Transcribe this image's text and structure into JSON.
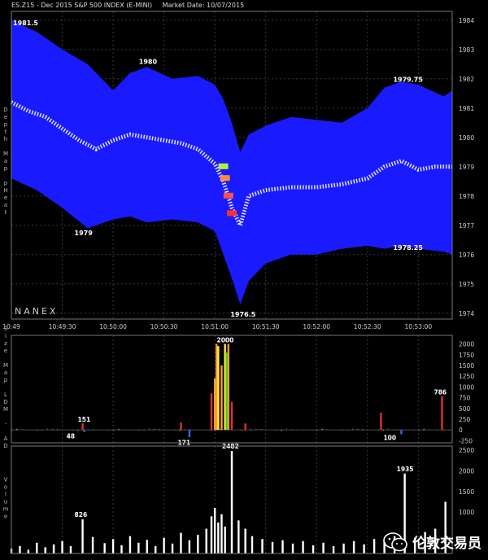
{
  "header": {
    "symbol": "ES.Z15 - Dec 2015 S&P 500 INDEX (E-MINI)",
    "market_date": "Market Date: 10/07/2015"
  },
  "watermark": {
    "text": "伦敦交易员"
  },
  "colors": {
    "background": "#000000",
    "heat_band": "#1a1aff",
    "price_line": "#e8e8ff",
    "grid": "#3a3a3a",
    "volume": "#ffffff",
    "ldm_up": "#e03030",
    "ldm_orange": "#ff9933",
    "ldm_yellow": "#ffee33",
    "ldm_green": "#33cc33",
    "ldm_blue": "#3366ff"
  },
  "chart_data": [
    {
      "type": "area",
      "panel": "Depth Map pHeat",
      "ylabel": "Depth Map pHeat",
      "ylim": [
        1973.8,
        1984.3
      ],
      "yticks": [
        1974,
        1975,
        1976,
        1977,
        1978,
        1979,
        1980,
        1981,
        1982,
        1983,
        1984
      ],
      "xlim": [
        "10:49:00",
        "10:53:20"
      ],
      "xticks": [
        "10:49",
        "10:49:30",
        "10:50:00",
        "10:50:30",
        "10:51:00",
        "10:51:30",
        "10:52:00",
        "10:52:30",
        "10:53:00"
      ],
      "brand": "NANEX",
      "annotations": [
        "1981.5",
        "1980",
        "1979.75",
        "1979",
        "1978.25",
        "1976.5"
      ],
      "series": [
        {
          "kind": "band-upper",
          "x": [
            "10:49:00",
            "10:49:15",
            "10:49:30",
            "10:49:45",
            "10:50:00",
            "10:50:10",
            "10:50:20",
            "10:50:35",
            "10:50:50",
            "10:51:00",
            "10:51:05",
            "10:51:10",
            "10:51:15",
            "10:51:20",
            "10:51:30",
            "10:51:45",
            "10:52:00",
            "10:52:15",
            "10:52:30",
            "10:52:40",
            "10:52:50",
            "10:53:00",
            "10:53:15",
            "10:53:20"
          ],
          "values": [
            1984.0,
            1983.6,
            1983.0,
            1982.5,
            1981.6,
            1982.2,
            1982.4,
            1982.0,
            1982.1,
            1981.8,
            1981.3,
            1980.5,
            1979.5,
            1980.1,
            1980.4,
            1980.7,
            1980.6,
            1980.5,
            1981.0,
            1981.7,
            1981.9,
            1981.8,
            1981.4,
            1981.6
          ]
        },
        {
          "kind": "band-lower",
          "x": [
            "10:49:00",
            "10:49:15",
            "10:49:30",
            "10:49:45",
            "10:50:00",
            "10:50:10",
            "10:50:20",
            "10:50:35",
            "10:50:50",
            "10:51:00",
            "10:51:05",
            "10:51:10",
            "10:51:15",
            "10:51:20",
            "10:51:30",
            "10:51:45",
            "10:52:00",
            "10:52:15",
            "10:52:30",
            "10:52:40",
            "10:52:50",
            "10:53:00",
            "10:53:15",
            "10:53:20"
          ],
          "values": [
            1978.6,
            1978.2,
            1977.6,
            1976.9,
            1977.2,
            1977.3,
            1977.1,
            1977.2,
            1977.1,
            1976.8,
            1976.0,
            1975.2,
            1974.3,
            1975.1,
            1975.7,
            1976.0,
            1976.0,
            1976.2,
            1976.3,
            1976.2,
            1976.3,
            1976.2,
            1976.1,
            1976.0
          ]
        },
        {
          "kind": "price",
          "x": [
            "10:49:00",
            "10:49:10",
            "10:49:20",
            "10:49:30",
            "10:49:40",
            "10:49:50",
            "10:50:00",
            "10:50:10",
            "10:50:20",
            "10:50:30",
            "10:50:40",
            "10:50:50",
            "10:51:00",
            "10:51:05",
            "10:51:10",
            "10:51:15",
            "10:51:20",
            "10:51:30",
            "10:51:45",
            "10:52:00",
            "10:52:15",
            "10:52:30",
            "10:52:40",
            "10:52:50",
            "10:53:00",
            "10:53:10",
            "10:53:20"
          ],
          "values": [
            1981.2,
            1980.9,
            1980.7,
            1980.3,
            1979.9,
            1979.6,
            1979.9,
            1980.1,
            1980.0,
            1979.9,
            1979.8,
            1979.6,
            1979.1,
            1978.5,
            1977.6,
            1977.0,
            1978.0,
            1978.2,
            1978.3,
            1978.3,
            1978.4,
            1978.6,
            1979.0,
            1979.2,
            1978.9,
            1979.0,
            1979.0
          ]
        }
      ],
      "heat_marks": [
        {
          "x": "10:51:05",
          "y": 1979.0,
          "color": "#b4f03c"
        },
        {
          "x": "10:51:06",
          "y": 1978.6,
          "color": "#ff8a3c"
        },
        {
          "x": "10:51:08",
          "y": 1978.0,
          "color": "#ff5050"
        },
        {
          "x": "10:51:10",
          "y": 1977.4,
          "color": "#ff3030"
        }
      ]
    },
    {
      "type": "bar",
      "panel": "Size Map LDM - AD",
      "ylabel": "Size Map LDM - AD",
      "ylim": [
        -300,
        2200
      ],
      "yticks": [
        -250,
        0,
        250,
        500,
        750,
        1000,
        1250,
        1500,
        1750,
        2000
      ],
      "annotations": [
        "151",
        "48",
        "171",
        "2000",
        "100",
        "786"
      ],
      "bars": [
        {
          "x": "10:49:42",
          "v": 151,
          "color": "#e03030"
        },
        {
          "x": "10:49:43",
          "v": -48,
          "color": "#3366ff"
        },
        {
          "x": "10:50:40",
          "v": 171,
          "color": "#e03030"
        },
        {
          "x": "10:50:45",
          "v": -171,
          "color": "#3366ff"
        },
        {
          "x": "10:50:58",
          "v": 850,
          "color": "#e03030"
        },
        {
          "x": "10:51:00",
          "v": 1200,
          "color": "#ff9933"
        },
        {
          "x": "10:51:01",
          "v": 2000,
          "color": "#ff9933"
        },
        {
          "x": "10:51:02",
          "v": 1950,
          "color": "#ffee33"
        },
        {
          "x": "10:51:04",
          "v": 1500,
          "color": "#ff9933"
        },
        {
          "x": "10:51:06",
          "v": 2000,
          "color": "#ffee33"
        },
        {
          "x": "10:51:07",
          "v": 1800,
          "color": "#33cc33"
        },
        {
          "x": "10:51:08",
          "v": 2000,
          "color": "#ff9933"
        },
        {
          "x": "10:51:10",
          "v": 650,
          "color": "#e03030"
        },
        {
          "x": "10:51:18",
          "v": 150,
          "color": "#e03030"
        },
        {
          "x": "10:52:38",
          "v": 400,
          "color": "#e03030"
        },
        {
          "x": "10:52:50",
          "v": -100,
          "color": "#3366ff"
        },
        {
          "x": "10:53:14",
          "v": 786,
          "color": "#e03030"
        }
      ]
    },
    {
      "type": "bar",
      "panel": "Volume",
      "ylabel": "Volume",
      "ylim": [
        0,
        2600
      ],
      "yticks": [
        1000,
        1500,
        2000,
        2500
      ],
      "annotations": [
        "826",
        "2482",
        "1935"
      ],
      "bars": [
        {
          "x": "10:49:00",
          "v": 120
        },
        {
          "x": "10:49:05",
          "v": 180
        },
        {
          "x": "10:49:10",
          "v": 90
        },
        {
          "x": "10:49:15",
          "v": 260
        },
        {
          "x": "10:49:20",
          "v": 150
        },
        {
          "x": "10:49:25",
          "v": 220
        },
        {
          "x": "10:49:30",
          "v": 300
        },
        {
          "x": "10:49:35",
          "v": 180
        },
        {
          "x": "10:49:42",
          "v": 826
        },
        {
          "x": "10:49:48",
          "v": 400
        },
        {
          "x": "10:49:55",
          "v": 250
        },
        {
          "x": "10:50:00",
          "v": 350
        },
        {
          "x": "10:50:05",
          "v": 200
        },
        {
          "x": "10:50:10",
          "v": 420
        },
        {
          "x": "10:50:15",
          "v": 260
        },
        {
          "x": "10:50:20",
          "v": 330
        },
        {
          "x": "10:50:25",
          "v": 180
        },
        {
          "x": "10:50:30",
          "v": 380
        },
        {
          "x": "10:50:35",
          "v": 240
        },
        {
          "x": "10:50:40",
          "v": 500
        },
        {
          "x": "10:50:45",
          "v": 320
        },
        {
          "x": "10:50:50",
          "v": 450
        },
        {
          "x": "10:50:55",
          "v": 600
        },
        {
          "x": "10:50:58",
          "v": 900
        },
        {
          "x": "10:51:00",
          "v": 1100
        },
        {
          "x": "10:51:02",
          "v": 750
        },
        {
          "x": "10:51:04",
          "v": 950
        },
        {
          "x": "10:51:06",
          "v": 650
        },
        {
          "x": "10:51:10",
          "v": 2482
        },
        {
          "x": "10:51:14",
          "v": 800
        },
        {
          "x": "10:51:18",
          "v": 600
        },
        {
          "x": "10:51:22",
          "v": 420
        },
        {
          "x": "10:51:28",
          "v": 350
        },
        {
          "x": "10:51:34",
          "v": 280
        },
        {
          "x": "10:51:40",
          "v": 320
        },
        {
          "x": "10:51:46",
          "v": 240
        },
        {
          "x": "10:51:52",
          "v": 300
        },
        {
          "x": "10:51:58",
          "v": 200
        },
        {
          "x": "10:52:04",
          "v": 260
        },
        {
          "x": "10:52:10",
          "v": 180
        },
        {
          "x": "10:52:16",
          "v": 240
        },
        {
          "x": "10:52:22",
          "v": 300
        },
        {
          "x": "10:52:28",
          "v": 220
        },
        {
          "x": "10:52:34",
          "v": 350
        },
        {
          "x": "10:52:40",
          "v": 280
        },
        {
          "x": "10:52:46",
          "v": 420
        },
        {
          "x": "10:52:52",
          "v": 1935
        },
        {
          "x": "10:52:58",
          "v": 380
        },
        {
          "x": "10:53:04",
          "v": 520
        },
        {
          "x": "10:53:10",
          "v": 600
        },
        {
          "x": "10:53:16",
          "v": 1250
        }
      ]
    }
  ]
}
